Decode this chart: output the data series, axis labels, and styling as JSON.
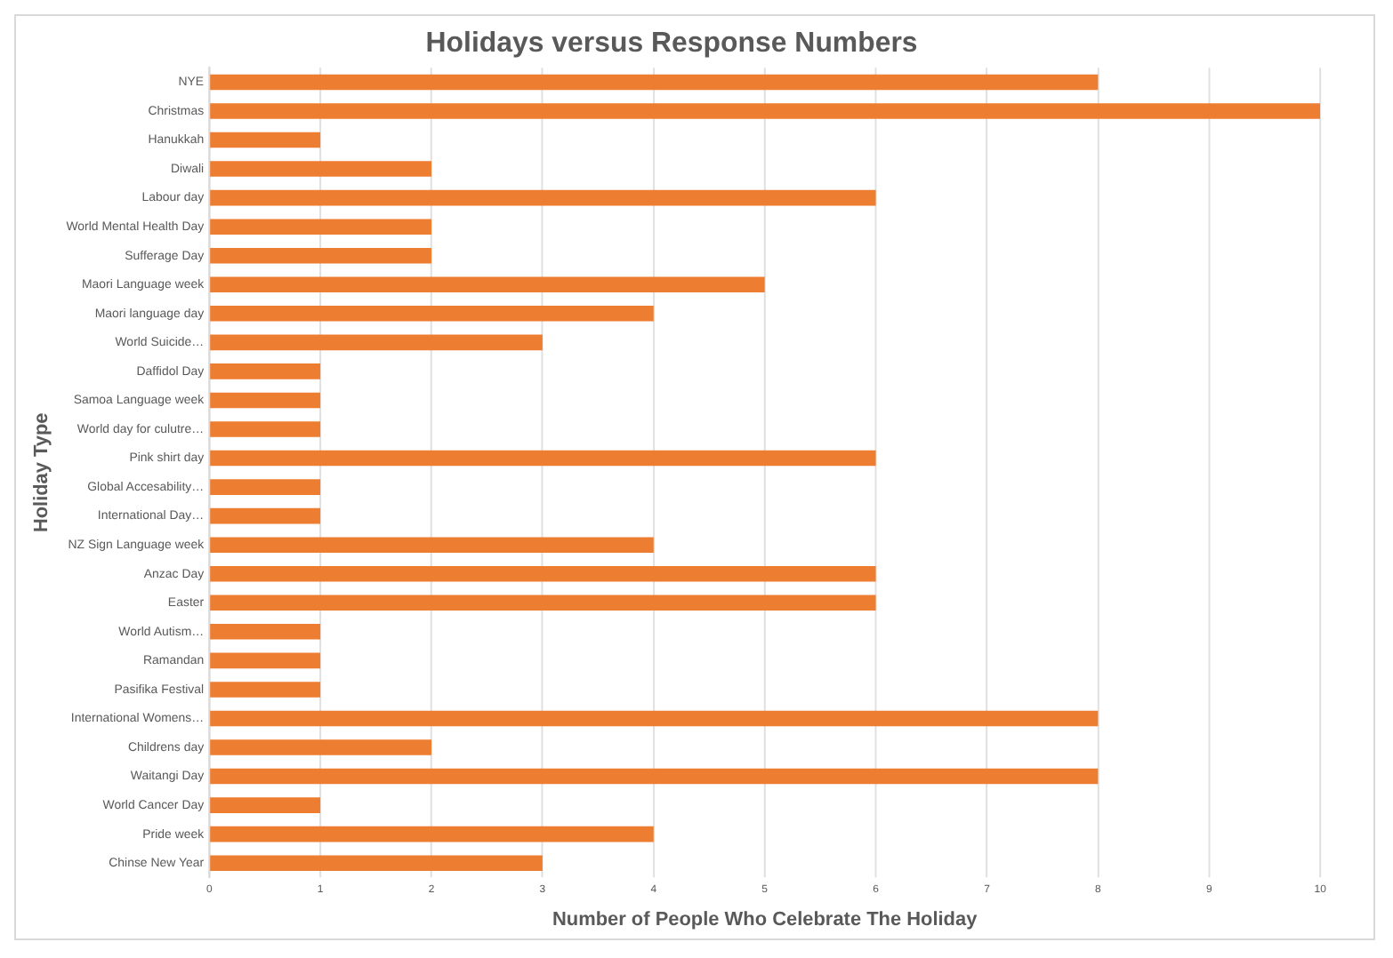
{
  "chart_data": {
    "type": "bar",
    "orientation": "horizontal",
    "title": "Holidays versus Response Numbers",
    "xlabel": "Number of People Who Celebrate The Holiday",
    "ylabel": "Holiday Type",
    "categories": [
      "NYE",
      "Christmas",
      "Hanukkah",
      "Diwali",
      "Labour day",
      "World Mental Health Day",
      "Sufferage Day",
      "Maori Language week",
      "Maori language day",
      "World Suicide…",
      "Daffidol Day",
      "Samoa Language week",
      "World day for culutre…",
      "Pink shirt day",
      "Global Accesability…",
      "International Day…",
      "NZ Sign Language week",
      "Anzac Day",
      "Easter",
      "World Autism…",
      "Ramandan",
      "Pasifika Festival",
      "International Womens…",
      "Childrens day",
      "Waitangi Day",
      "World Cancer Day",
      "Pride week",
      "Chinse New Year"
    ],
    "values": [
      8,
      10,
      1,
      2,
      6,
      2,
      2,
      5,
      4,
      3,
      1,
      1,
      1,
      6,
      1,
      1,
      4,
      6,
      6,
      1,
      1,
      1,
      8,
      2,
      8,
      1,
      4,
      3
    ],
    "color": "#ed7d31",
    "xlim": [
      0,
      10
    ],
    "xticks": [
      0,
      1,
      2,
      3,
      4,
      5,
      6,
      7,
      8,
      9,
      10
    ],
    "grid": "x",
    "legend": false
  }
}
